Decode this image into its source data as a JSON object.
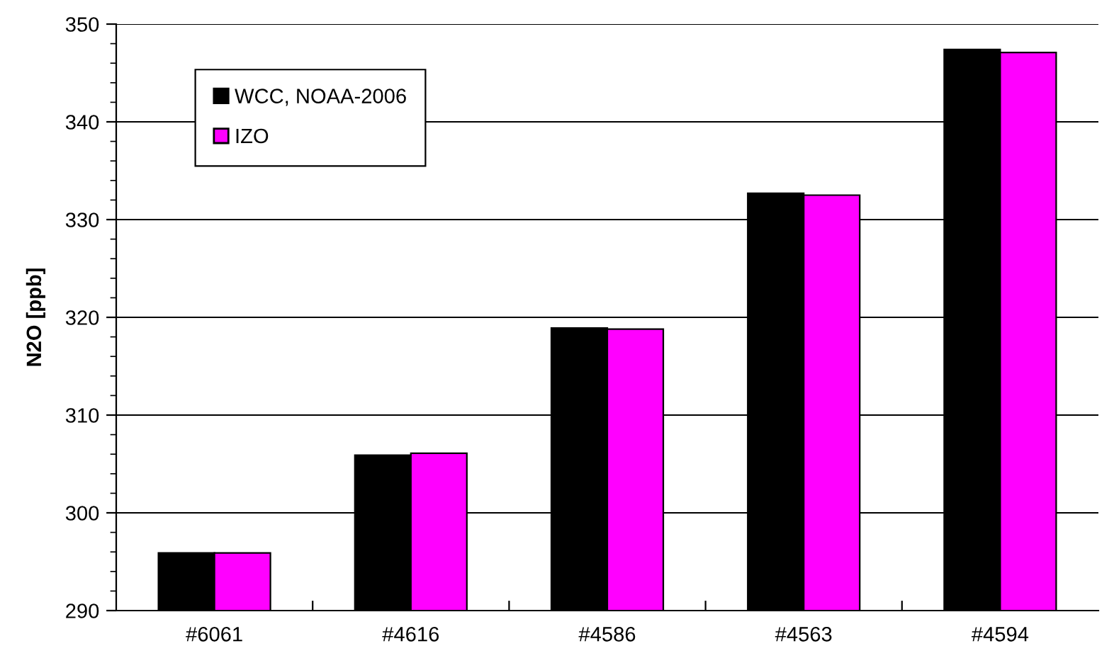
{
  "chart_data": {
    "type": "bar",
    "ylabel": "N2O [ppb]",
    "categories": [
      "#6061",
      "#4616",
      "#4586",
      "#4563",
      "#4594"
    ],
    "series": [
      {
        "name": "WCC, NOAA-2006",
        "color": "#000000",
        "values": [
          295.9,
          305.9,
          318.9,
          332.7,
          347.4
        ]
      },
      {
        "name": "IZO",
        "color": "#ff00ff",
        "values": [
          295.9,
          306.1,
          318.8,
          332.5,
          347.1
        ]
      }
    ],
    "ylim": [
      290,
      350
    ],
    "yticks": [
      290,
      300,
      310,
      320,
      330,
      340,
      350
    ],
    "grid": "y",
    "legend": "top left"
  }
}
